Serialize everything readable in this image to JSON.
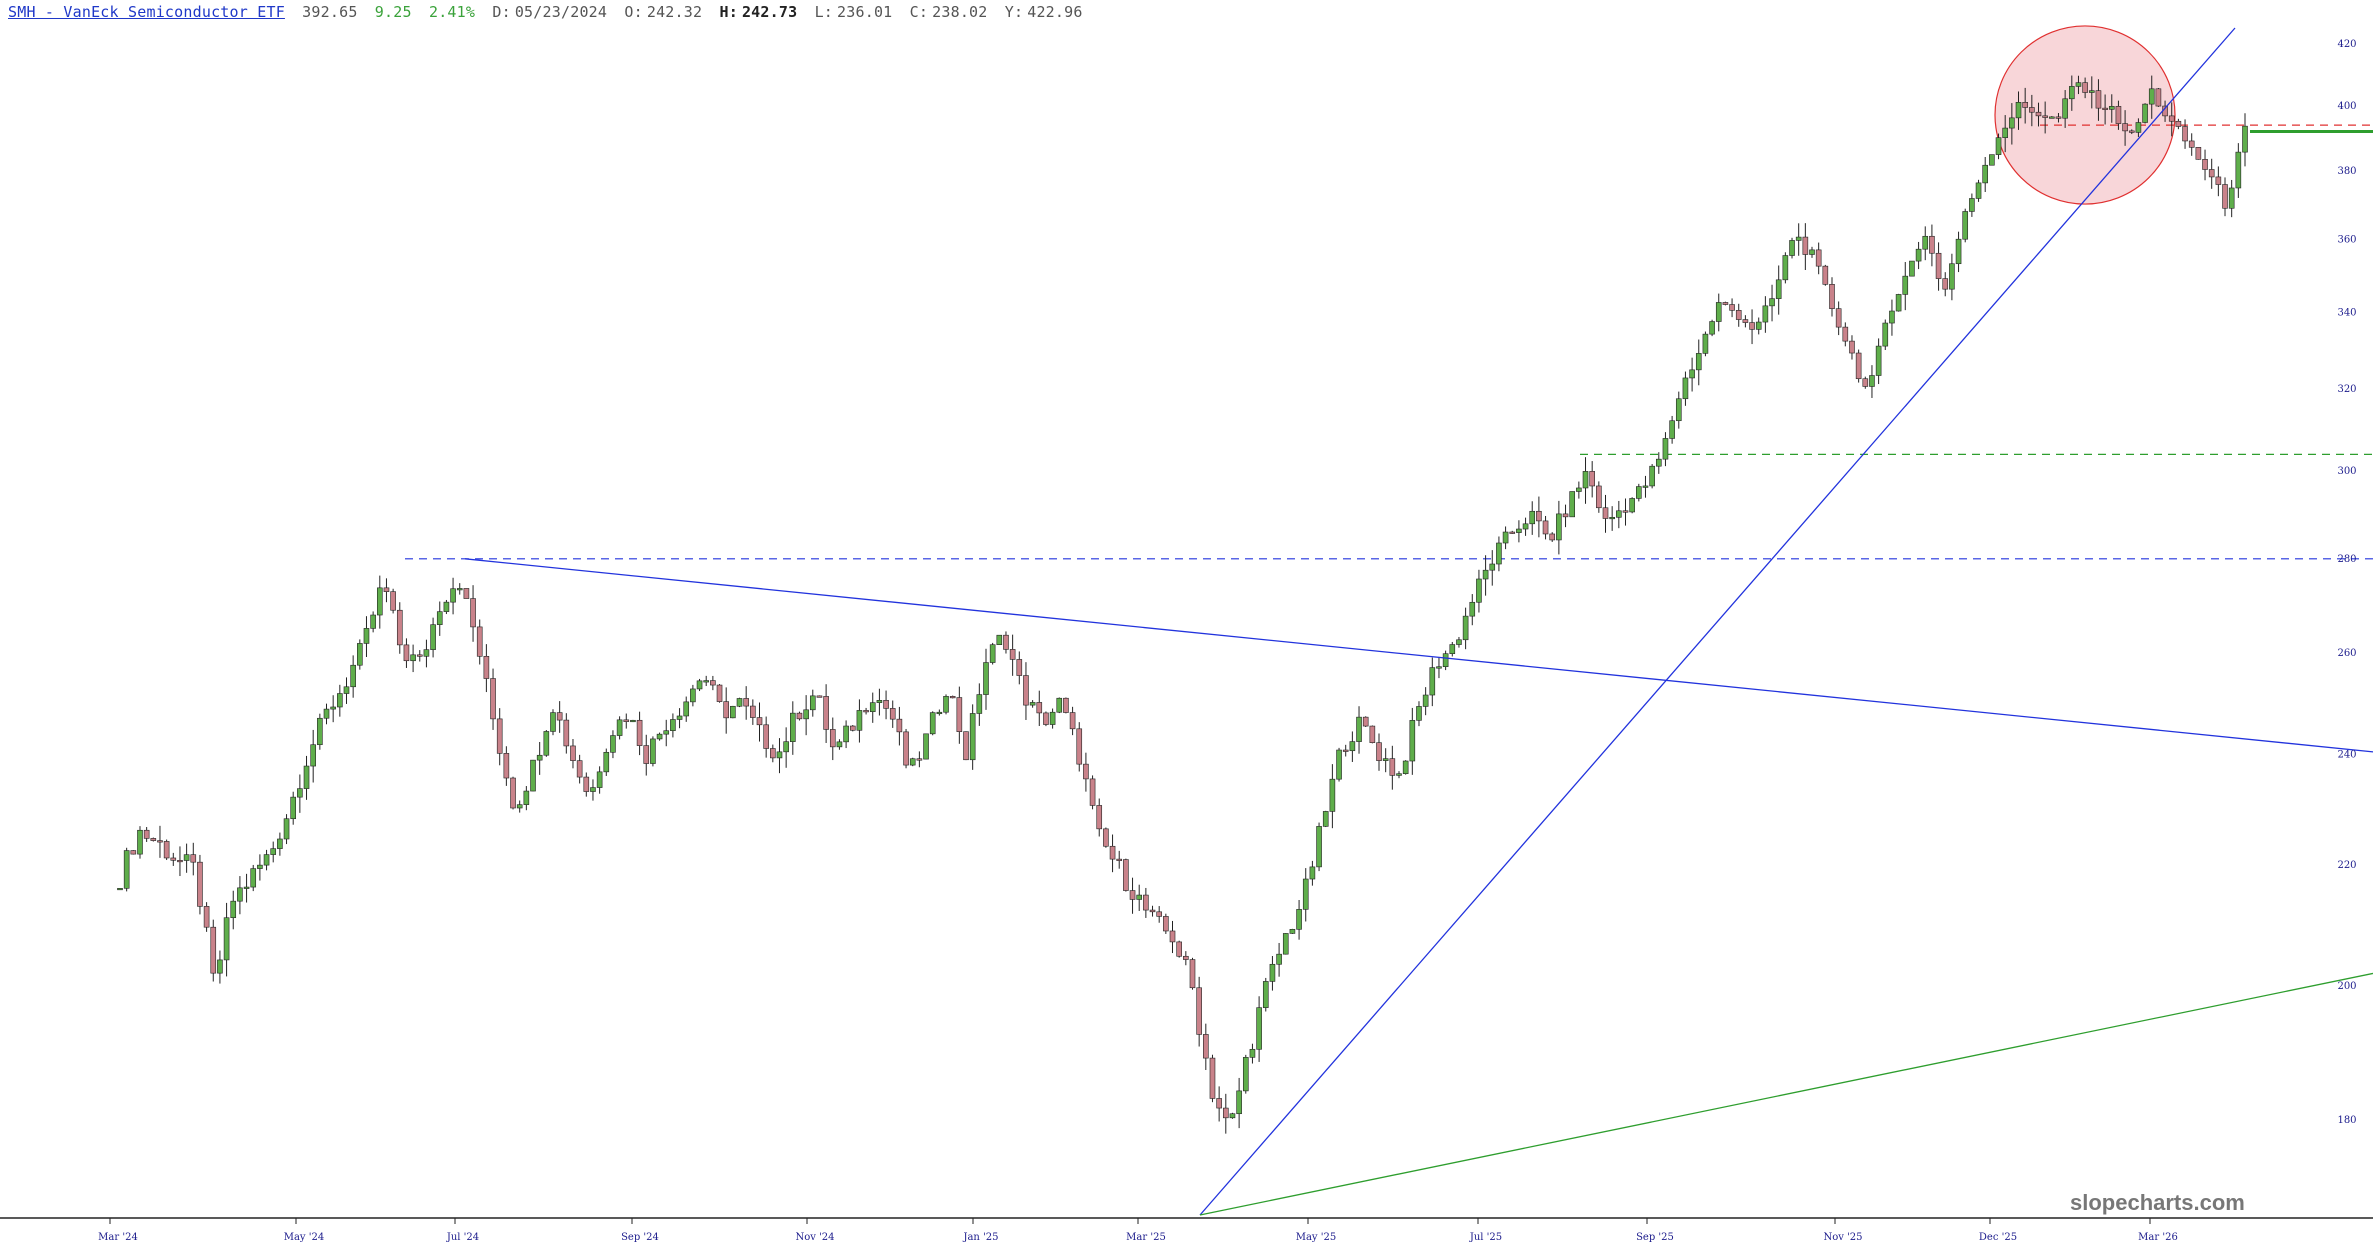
{
  "header": {
    "symbol": "SMH - VanEck Semiconductor ETF",
    "last": "392.65",
    "change": "9.25",
    "change_pct": "2.41%",
    "date_label": "D:",
    "date": "05/23/2024",
    "open_label": "O:",
    "open": "242.32",
    "high_label": "H:",
    "high": "242.73",
    "low_label": "L:",
    "low": "236.01",
    "close_label": "C:",
    "close": "238.02",
    "y_label": "Y:",
    "y": "422.96"
  },
  "watermark": "slopecharts.com",
  "colors": {
    "up": "#5fae4b",
    "down": "#c9828a",
    "axis_text": "#1c1c8c",
    "trend_blue": "#2233dd",
    "trend_green": "#2e9e2e",
    "ellipse_fill": "#f6c8cc",
    "ellipse_stroke": "#e03030"
  },
  "chart_data": {
    "type": "candlestick",
    "title": "SMH - VanEck Semiconductor ETF",
    "y_scale": "log",
    "ylim": [
      167,
      428
    ],
    "y_ticks": [
      180,
      200,
      220,
      240,
      260,
      280,
      300,
      320,
      340,
      360,
      380,
      400,
      420
    ],
    "x_ticks": [
      "Mar '24",
      "May '24",
      "Jul '24",
      "Sep '24",
      "Nov '24",
      "Jan '25",
      "Mar '25",
      "May '25",
      "Jul '25",
      "Sep '25",
      "Nov '25",
      "Dec '25",
      "Mar '26"
    ],
    "close_series": {
      "start_label": "Mar '24",
      "end_label": "Mar '26",
      "closes": [
        218,
        226,
        224,
        221,
        219,
        200,
        214,
        218,
        222,
        230,
        240,
        248,
        254,
        262,
        275,
        260,
        258,
        270,
        276,
        262,
        244,
        230,
        238,
        250,
        240,
        232,
        244,
        248,
        240,
        246,
        250,
        256,
        248,
        250,
        244,
        240,
        248,
        252,
        240,
        246,
        252,
        248,
        236,
        244,
        254,
        240,
        258,
        264,
        252,
        246,
        250,
        240,
        225,
        220,
        215,
        210,
        208,
        200,
        185,
        178,
        190,
        200,
        208,
        215,
        228,
        242,
        246,
        240,
        236,
        248,
        258,
        262,
        272,
        280,
        286,
        290,
        284,
        292,
        300,
        288,
        292,
        296,
        304,
        320,
        330,
        342,
        340,
        335,
        345,
        362,
        355,
        342,
        330,
        318,
        340,
        350,
        362,
        345,
        365,
        380,
        392,
        400,
        398,
        395,
        408,
        402,
        398,
        390,
        405,
        395,
        388,
        380,
        370,
        392
      ],
      "last": 392.65
    },
    "horizontal_levels": [
      {
        "value": 280,
        "style": "dashed",
        "color": "blue"
      },
      {
        "value": 304,
        "style": "dashed",
        "color": "green"
      },
      {
        "value": 394,
        "style": "dashed",
        "color": "red"
      },
      {
        "value": 392,
        "style": "solid",
        "color": "green"
      }
    ],
    "trendlines": [
      {
        "color": "blue",
        "from": [
          "Jul '24",
          280
        ],
        "to": [
          "Mar '26+",
          240
        ]
      },
      {
        "color": "blue",
        "from": [
          "Apr '25",
          168
        ],
        "to": [
          "Mar '26",
          426
        ]
      },
      {
        "color": "green",
        "from": [
          "Apr '25",
          168
        ],
        "to": [
          "Mar '26+",
          202
        ]
      }
    ],
    "highlight": {
      "shape": "ellipse",
      "region": "Dec '25 – Mar '26 top",
      "y_range": [
        372,
        424
      ]
    }
  }
}
